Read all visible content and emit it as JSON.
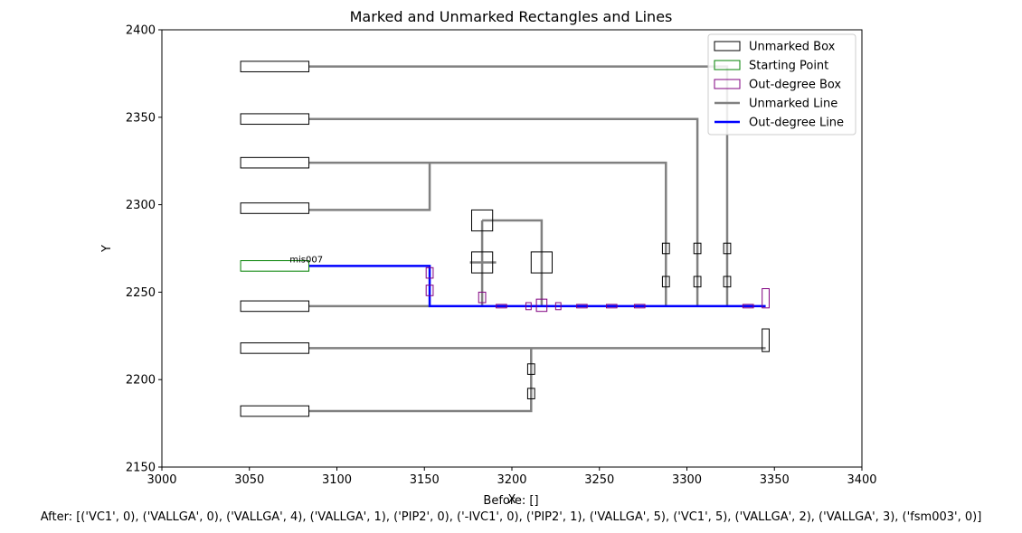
{
  "chart_data": {
    "type": "scatter",
    "title": "Marked and Unmarked Rectangles and Lines",
    "xlabel": "X",
    "ylabel": "Y",
    "xlim": [
      3000,
      3400
    ],
    "ylim": [
      2150,
      2400
    ],
    "xticks": [
      3000,
      3050,
      3100,
      3150,
      3200,
      3250,
      3300,
      3350,
      3400
    ],
    "yticks": [
      2150,
      2200,
      2250,
      2300,
      2350,
      2400
    ],
    "grid": false,
    "legend_position": "top-right",
    "legend": [
      {
        "label": "Unmarked Box",
        "kind": "box",
        "color": "#000000"
      },
      {
        "label": "Starting Point",
        "kind": "box",
        "color": "#008000"
      },
      {
        "label": "Out-degree Box",
        "kind": "box",
        "color": "#800080"
      },
      {
        "label": "Unmarked Line",
        "kind": "line",
        "color": "#808080"
      },
      {
        "label": "Out-degree Line",
        "kind": "line",
        "color": "#0000ff"
      }
    ],
    "colors": {
      "unmarked_box": "#000000",
      "starting_point": "#008000",
      "outdegree_box": "#800080",
      "unmarked_line": "#808080",
      "outdegree_line": "#0000ff"
    },
    "annotations": [
      {
        "text": "mis007",
        "x": 3073,
        "y": 2267,
        "color": "#008000"
      }
    ],
    "unmarked_lines": [
      [
        [
          3084,
          2379
        ],
        [
          3323,
          2379
        ],
        [
          3323,
          2242
        ]
      ],
      [
        [
          3084,
          2349
        ],
        [
          3306,
          2349
        ],
        [
          3306,
          2242
        ]
      ],
      [
        [
          3084,
          2324
        ],
        [
          3288,
          2324
        ],
        [
          3288,
          2242
        ]
      ],
      [
        [
          3084,
          2297
        ],
        [
          3153,
          2297
        ],
        [
          3153,
          2324
        ]
      ],
      [
        [
          3084,
          2242
        ],
        [
          3153,
          2242
        ]
      ],
      [
        [
          3084,
          2218
        ],
        [
          3345,
          2218
        ]
      ],
      [
        [
          3084,
          2182
        ],
        [
          3211,
          2182
        ],
        [
          3211,
          2218
        ]
      ],
      [
        [
          3183,
          2291
        ],
        [
          3217,
          2291
        ],
        [
          3217,
          2242
        ]
      ],
      [
        [
          3183,
          2291
        ],
        [
          3183,
          2242
        ]
      ],
      [
        [
          3176,
          2267
        ],
        [
          3191,
          2267
        ]
      ]
    ],
    "outdegree_lines": [
      [
        [
          3084,
          2265
        ],
        [
          3153,
          2265
        ],
        [
          3153,
          2242
        ],
        [
          3345,
          2242
        ]
      ]
    ],
    "unmarked_boxes": [
      {
        "x0": 3045,
        "y0": 2376,
        "x1": 3084,
        "y1": 2382
      },
      {
        "x0": 3045,
        "y0": 2346,
        "x1": 3084,
        "y1": 2352
      },
      {
        "x0": 3045,
        "y0": 2321,
        "x1": 3084,
        "y1": 2327
      },
      {
        "x0": 3045,
        "y0": 2295,
        "x1": 3084,
        "y1": 2301
      },
      {
        "x0": 3045,
        "y0": 2239,
        "x1": 3084,
        "y1": 2245
      },
      {
        "x0": 3045,
        "y0": 2215,
        "x1": 3084,
        "y1": 2221
      },
      {
        "x0": 3045,
        "y0": 2179,
        "x1": 3084,
        "y1": 2185
      },
      {
        "x0": 3177,
        "y0": 2285,
        "x1": 3189,
        "y1": 2297
      },
      {
        "x0": 3177,
        "y0": 2261,
        "x1": 3189,
        "y1": 2273
      },
      {
        "x0": 3211,
        "y0": 2261,
        "x1": 3223,
        "y1": 2273
      },
      {
        "x0": 3286,
        "y0": 2272,
        "x1": 3290,
        "y1": 2278
      },
      {
        "x0": 3286,
        "y0": 2253,
        "x1": 3290,
        "y1": 2259
      },
      {
        "x0": 3304,
        "y0": 2272,
        "x1": 3308,
        "y1": 2278
      },
      {
        "x0": 3304,
        "y0": 2253,
        "x1": 3308,
        "y1": 2259
      },
      {
        "x0": 3321,
        "y0": 2272,
        "x1": 3325,
        "y1": 2278
      },
      {
        "x0": 3321,
        "y0": 2253,
        "x1": 3325,
        "y1": 2259
      },
      {
        "x0": 3343,
        "y0": 2216,
        "x1": 3347,
        "y1": 2229
      },
      {
        "x0": 3209,
        "y0": 2203,
        "x1": 3213,
        "y1": 2209
      },
      {
        "x0": 3209,
        "y0": 2189,
        "x1": 3213,
        "y1": 2195
      }
    ],
    "starting_boxes": [
      {
        "x0": 3045,
        "y0": 2262,
        "x1": 3084,
        "y1": 2268
      }
    ],
    "outdegree_boxes": [
      {
        "x0": 3151,
        "y0": 2258,
        "x1": 3155,
        "y1": 2264
      },
      {
        "x0": 3151,
        "y0": 2248,
        "x1": 3155,
        "y1": 2254
      },
      {
        "x0": 3181,
        "y0": 2244,
        "x1": 3185,
        "y1": 2250
      },
      {
        "x0": 3191,
        "y0": 2241,
        "x1": 3197,
        "y1": 2243
      },
      {
        "x0": 3208,
        "y0": 2240,
        "x1": 3211,
        "y1": 2244
      },
      {
        "x0": 3214,
        "y0": 2239,
        "x1": 3220,
        "y1": 2246
      },
      {
        "x0": 3225,
        "y0": 2240,
        "x1": 3228,
        "y1": 2244
      },
      {
        "x0": 3237,
        "y0": 2241,
        "x1": 3243,
        "y1": 2243
      },
      {
        "x0": 3254,
        "y0": 2241,
        "x1": 3260,
        "y1": 2243
      },
      {
        "x0": 3270,
        "y0": 2241,
        "x1": 3276,
        "y1": 2243
      },
      {
        "x0": 3332,
        "y0": 2241,
        "x1": 3338,
        "y1": 2243
      },
      {
        "x0": 3343,
        "y0": 2241,
        "x1": 3347,
        "y1": 2252
      }
    ]
  },
  "captions": {
    "before": "Before: []",
    "after": "After: [('VC1', 0), ('VALLGA', 0), ('VALLGA', 4), ('VALLGA', 1), ('PIP2', 0), ('-IVC1', 0), ('PIP2', 1), ('VALLGA', 5), ('VC1', 5), ('VALLGA', 2), ('VALLGA', 3), ('fsm003', 0)]"
  }
}
